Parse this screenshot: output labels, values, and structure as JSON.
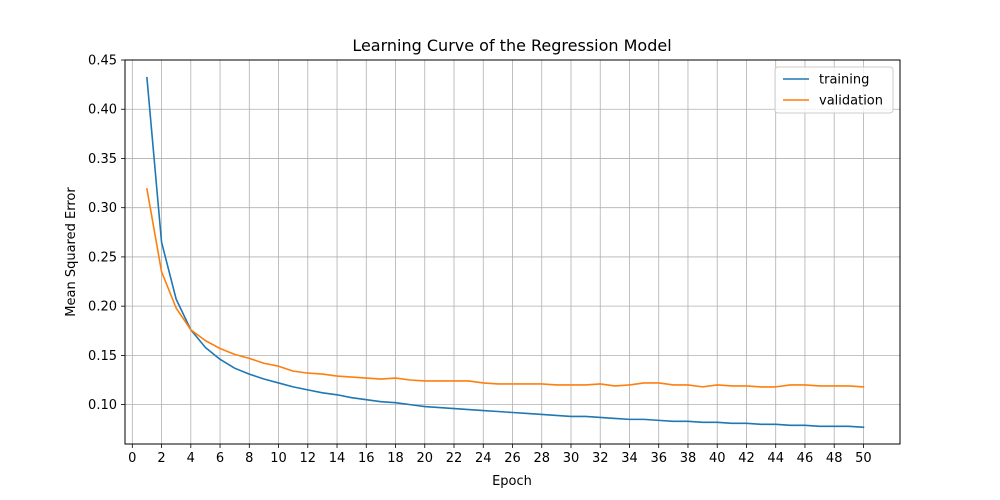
{
  "chart_data": {
    "type": "line",
    "title": "Learning Curve of the Regression Model",
    "xlabel": "Epoch",
    "ylabel": "Mean Squared Error",
    "xlim": [
      -0.5,
      52.5
    ],
    "ylim": [
      0.06,
      0.45
    ],
    "xticks": [
      0,
      2,
      4,
      6,
      8,
      10,
      12,
      14,
      16,
      18,
      20,
      22,
      24,
      26,
      28,
      30,
      32,
      34,
      36,
      38,
      40,
      42,
      44,
      46,
      48,
      50
    ],
    "yticks": [
      0.1,
      0.15,
      0.2,
      0.25,
      0.3,
      0.35,
      0.4,
      0.45
    ],
    "xtick_labels": [
      "0",
      "2",
      "4",
      "6",
      "8",
      "10",
      "12",
      "14",
      "16",
      "18",
      "20",
      "22",
      "24",
      "26",
      "28",
      "30",
      "32",
      "34",
      "36",
      "38",
      "40",
      "42",
      "44",
      "46",
      "48",
      "50"
    ],
    "ytick_labels": [
      "0.10",
      "0.15",
      "0.20",
      "0.25",
      "0.30",
      "0.35",
      "0.40",
      "0.45"
    ],
    "grid": true,
    "legend_position": "top-right",
    "x": [
      1,
      2,
      3,
      4,
      5,
      6,
      7,
      8,
      9,
      10,
      11,
      12,
      13,
      14,
      15,
      16,
      17,
      18,
      19,
      20,
      21,
      22,
      23,
      24,
      25,
      26,
      27,
      28,
      29,
      30,
      31,
      32,
      33,
      34,
      35,
      36,
      37,
      38,
      39,
      40,
      41,
      42,
      43,
      44,
      45,
      46,
      47,
      48,
      49,
      50
    ],
    "series": [
      {
        "name": "training",
        "color": "#1f77b4",
        "values": [
          0.432,
          0.265,
          0.207,
          0.176,
          0.158,
          0.146,
          0.137,
          0.131,
          0.126,
          0.122,
          0.118,
          0.115,
          0.112,
          0.11,
          0.107,
          0.105,
          0.103,
          0.102,
          0.1,
          0.098,
          0.097,
          0.096,
          0.095,
          0.094,
          0.093,
          0.092,
          0.091,
          0.09,
          0.089,
          0.088,
          0.088,
          0.087,
          0.086,
          0.085,
          0.085,
          0.084,
          0.083,
          0.083,
          0.082,
          0.082,
          0.081,
          0.081,
          0.08,
          0.08,
          0.079,
          0.079,
          0.078,
          0.078,
          0.078,
          0.077
        ]
      },
      {
        "name": "validation",
        "color": "#ff7f0e",
        "values": [
          0.319,
          0.235,
          0.198,
          0.176,
          0.165,
          0.157,
          0.151,
          0.147,
          0.142,
          0.139,
          0.134,
          0.132,
          0.131,
          0.129,
          0.128,
          0.127,
          0.126,
          0.127,
          0.125,
          0.124,
          0.124,
          0.124,
          0.124,
          0.122,
          0.121,
          0.121,
          0.121,
          0.121,
          0.12,
          0.12,
          0.12,
          0.121,
          0.119,
          0.12,
          0.122,
          0.122,
          0.12,
          0.12,
          0.118,
          0.12,
          0.119,
          0.119,
          0.118,
          0.118,
          0.12,
          0.12,
          0.119,
          0.119,
          0.119,
          0.118
        ]
      }
    ]
  }
}
